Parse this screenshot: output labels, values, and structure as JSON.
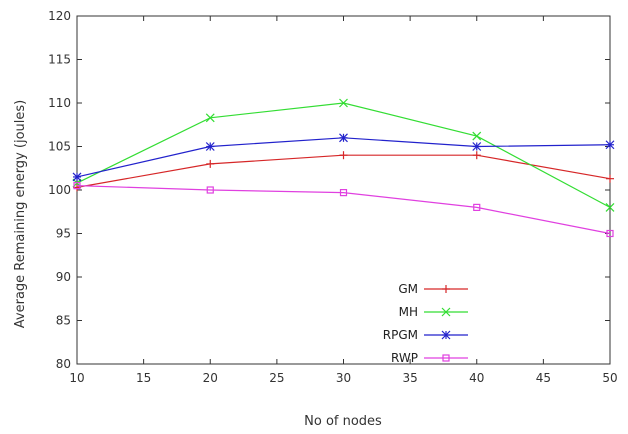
{
  "chart_data": {
    "type": "line",
    "title": "",
    "xlabel": "No of nodes",
    "ylabel": "Average Remaining energy (joules)",
    "xlim": [
      10,
      50
    ],
    "ylim": [
      80,
      120
    ],
    "x_ticks": [
      10,
      15,
      20,
      25,
      30,
      35,
      40,
      45,
      50
    ],
    "y_ticks": [
      80,
      85,
      90,
      95,
      100,
      105,
      110,
      115,
      120
    ],
    "grid": false,
    "legend_position": "bottom-right",
    "x": [
      10,
      20,
      30,
      40,
      50
    ],
    "series": [
      {
        "name": "GM",
        "values": [
          100.3,
          103.0,
          104.0,
          104.0,
          101.3
        ],
        "color": "#d62728",
        "marker": "plus"
      },
      {
        "name": "MH",
        "values": [
          100.8,
          108.3,
          110.0,
          106.2,
          98.0
        ],
        "color": "#33dd33",
        "marker": "cross"
      },
      {
        "name": "RPGM",
        "values": [
          101.5,
          105.0,
          106.0,
          105.0,
          105.2
        ],
        "color": "#2222cc",
        "marker": "star"
      },
      {
        "name": "RWP",
        "values": [
          100.5,
          100.0,
          99.7,
          98.0,
          95.0
        ],
        "color": "#e040e0",
        "marker": "square"
      }
    ]
  }
}
